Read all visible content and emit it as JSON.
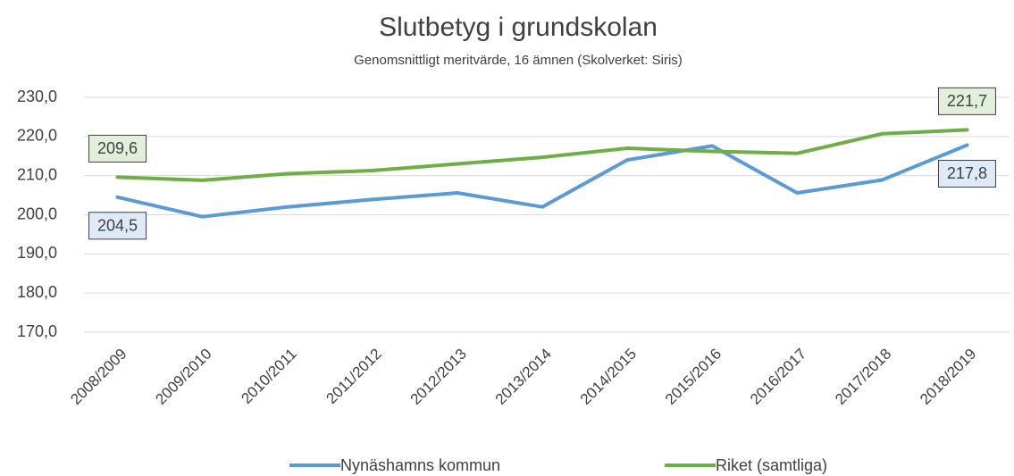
{
  "chart_data": {
    "type": "line",
    "title": "Slutbetyg i grundskolan",
    "subtitle": "Genomsnittligt meritvärde, 16 ämnen (Skolverket: Siris)",
    "categories": [
      "2008/2009",
      "2009/2010",
      "2010/2011",
      "2011/2012",
      "2012/2013",
      "2013/2014",
      "2014/2015",
      "2015/2016",
      "2016/2017",
      "2017/2018",
      "2018/2019"
    ],
    "series": [
      {
        "name": "Nynäshamns kommun",
        "color": "#5b9bd5",
        "values": [
          204.5,
          199.5,
          202.0,
          203.9,
          205.6,
          202.0,
          214.0,
          217.6,
          205.6,
          208.9,
          217.8
        ],
        "value_labels": [
          "204,5",
          null,
          null,
          null,
          null,
          null,
          null,
          null,
          null,
          null,
          "217,8"
        ],
        "label_fill": "#deebf7"
      },
      {
        "name": "Riket (samtliga)",
        "color": "#70ad47",
        "values": [
          209.6,
          208.8,
          210.5,
          211.3,
          213.0,
          214.7,
          217.0,
          216.2,
          215.7,
          220.7,
          221.7
        ],
        "value_labels": [
          "209,6",
          null,
          null,
          null,
          null,
          null,
          null,
          null,
          null,
          null,
          "221,7"
        ],
        "label_fill": "#e2efda"
      }
    ],
    "ylim": [
      170,
      230
    ],
    "yticks": [
      {
        "value": 170,
        "label": "170,0"
      },
      {
        "value": 180,
        "label": "180,0"
      },
      {
        "value": 190,
        "label": "190,0"
      },
      {
        "value": 200,
        "label": "200,0"
      },
      {
        "value": 210,
        "label": "210,0"
      },
      {
        "value": 220,
        "label": "220,0"
      },
      {
        "value": 230,
        "label": "230,0"
      }
    ],
    "grid": true,
    "legend": "bottom"
  }
}
